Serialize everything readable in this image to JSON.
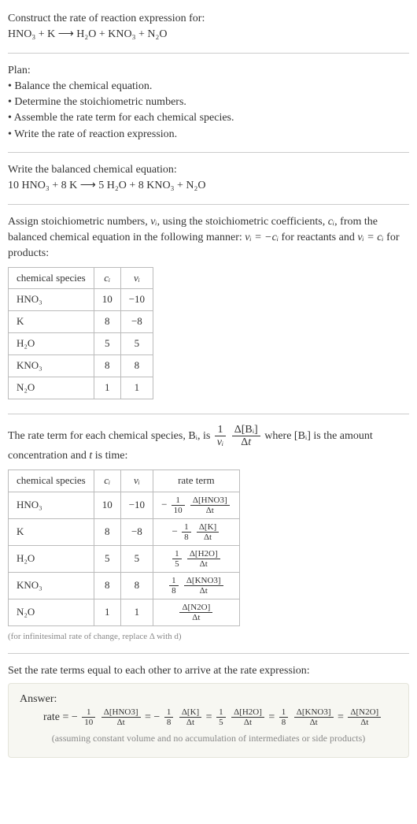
{
  "intro": {
    "line1": "Construct the rate of reaction expression for:",
    "equation": "HNO₃ + K ⟶ H₂O + KNO₃ + N₂O"
  },
  "plan": {
    "heading": "Plan:",
    "items": [
      "• Balance the chemical equation.",
      "• Determine the stoichiometric numbers.",
      "• Assemble the rate term for each chemical species.",
      "• Write the rate of reaction expression."
    ]
  },
  "balanced": {
    "heading": "Write the balanced chemical equation:",
    "equation": "10 HNO₃ + 8 K ⟶ 5 H₂O + 8 KNO₃ + N₂O"
  },
  "assign": {
    "text_a": "Assign stoichiometric numbers, ",
    "nu_i": "νᵢ",
    "text_b": ", using the stoichiometric coefficients, ",
    "c_i": "cᵢ",
    "text_c": ", from the balanced chemical equation in the following manner: ",
    "rule1": "νᵢ = −cᵢ",
    "text_d": " for reactants and ",
    "rule2": "νᵢ = cᵢ",
    "text_e": " for products:"
  },
  "table1": {
    "headers": [
      "chemical species",
      "cᵢ",
      "νᵢ"
    ],
    "rows": [
      [
        "HNO₃",
        "10",
        "−10"
      ],
      [
        "K",
        "8",
        "−8"
      ],
      [
        "H₂O",
        "5",
        "5"
      ],
      [
        "KNO₃",
        "8",
        "8"
      ],
      [
        "N₂O",
        "1",
        "1"
      ]
    ]
  },
  "rateterm": {
    "text_a": "The rate term for each chemical species, Bᵢ, is ",
    "frac1_num": "1",
    "frac1_den": "νᵢ",
    "frac2_num": "Δ[Bᵢ]",
    "frac2_den": "Δt",
    "text_b": " where [Bᵢ] is the amount concentration and ",
    "t": "t",
    "text_c": " is time:"
  },
  "table2": {
    "headers": [
      "chemical species",
      "cᵢ",
      "νᵢ",
      "rate term"
    ],
    "rows": [
      {
        "sp": "HNO₃",
        "c": "10",
        "nu": "−10",
        "sign": "−",
        "fn": "1",
        "fd": "10",
        "dn": "Δ[HNO3]",
        "dd": "Δt"
      },
      {
        "sp": "K",
        "c": "8",
        "nu": "−8",
        "sign": "−",
        "fn": "1",
        "fd": "8",
        "dn": "Δ[K]",
        "dd": "Δt"
      },
      {
        "sp": "H₂O",
        "c": "5",
        "nu": "5",
        "sign": "",
        "fn": "1",
        "fd": "5",
        "dn": "Δ[H2O]",
        "dd": "Δt"
      },
      {
        "sp": "KNO₃",
        "c": "8",
        "nu": "8",
        "sign": "",
        "fn": "1",
        "fd": "8",
        "dn": "Δ[KNO3]",
        "dd": "Δt"
      },
      {
        "sp": "N₂O",
        "c": "1",
        "nu": "1",
        "sign": "",
        "fn": "",
        "fd": "",
        "dn": "Δ[N2O]",
        "dd": "Δt"
      }
    ],
    "note": "(for infinitesimal rate of change, replace Δ with d)"
  },
  "set": {
    "text": "Set the rate terms equal to each other to arrive at the rate expression:"
  },
  "answer": {
    "heading": "Answer:",
    "prefix": "rate = ",
    "terms": [
      {
        "sign": "−",
        "fn": "1",
        "fd": "10",
        "dn": "Δ[HNO3]",
        "dd": "Δt"
      },
      {
        "sign": "−",
        "fn": "1",
        "fd": "8",
        "dn": "Δ[K]",
        "dd": "Δt"
      },
      {
        "sign": "",
        "fn": "1",
        "fd": "5",
        "dn": "Δ[H2O]",
        "dd": "Δt"
      },
      {
        "sign": "",
        "fn": "1",
        "fd": "8",
        "dn": "Δ[KNO3]",
        "dd": "Δt"
      },
      {
        "sign": "",
        "fn": "",
        "fd": "",
        "dn": "Δ[N2O]",
        "dd": "Δt"
      }
    ],
    "note": "(assuming constant volume and no accumulation of intermediates or side products)"
  },
  "style": {
    "text_color": "#333333",
    "rule_color": "#cccccc",
    "table_border": "#bbbbbb",
    "answer_bg": "#f7f7f2",
    "answer_border": "#e4e4da",
    "note_color": "#888888",
    "font_size_base": 14,
    "font_size_table": 13,
    "font_size_note": 12,
    "font_family": "Georgia, Times New Roman, serif"
  }
}
